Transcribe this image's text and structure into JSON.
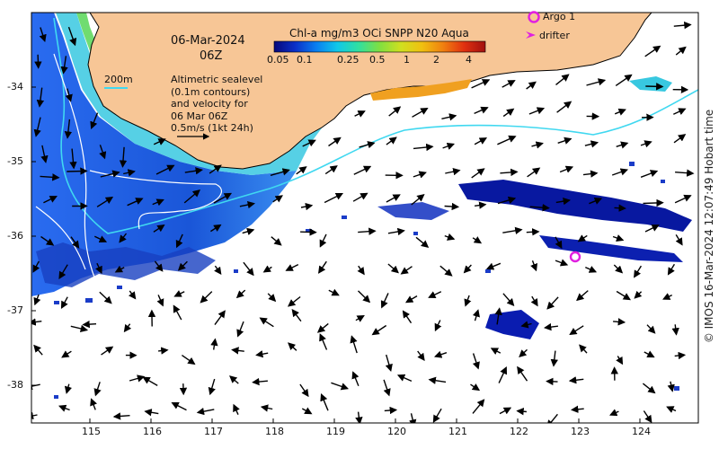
{
  "map": {
    "date": "06-Mar-2024",
    "time": "06Z",
    "colorbar": {
      "title": "Chl-a mg/m3 OCi SNPP N20 Aqua",
      "ticks": [
        "0.05",
        "0.1",
        "0.25",
        "0.5",
        "1",
        "2",
        "4"
      ],
      "colors": [
        "#08087a",
        "#0a30c8",
        "#0a7ff0",
        "#10c8e8",
        "#30e0a0",
        "#80e040",
        "#d0e020",
        "#f0c010",
        "#f08010",
        "#e03010",
        "#a01010"
      ]
    },
    "contour_legend": {
      "label": "200m",
      "color": "#48d0e8"
    },
    "altimetry_note": "Altimetric sealevel\n(0.1m contours)\nand velocity for\n06 Mar 06Z\n0.5m/s (1kt 24h)",
    "markers": {
      "argo_label": "Argo 1",
      "drifter_label": "drifter",
      "color": "#e020e0"
    },
    "credit": "© IMOS 16-Mar-2024 12:07:49 Hobart time",
    "lat_ticks": [
      "-34",
      "-35",
      "-36",
      "-37",
      "-38"
    ],
    "lon_ticks": [
      "115",
      "116",
      "117",
      "118",
      "119",
      "120",
      "121",
      "122",
      "123",
      "124"
    ],
    "colors": {
      "land": "#f7c696",
      "coast": "#000000",
      "contour": "#40d8f0",
      "arrow": "#000000"
    },
    "argo_positions": [
      {
        "lon": 123.0,
        "lat": -36.25
      }
    ]
  }
}
